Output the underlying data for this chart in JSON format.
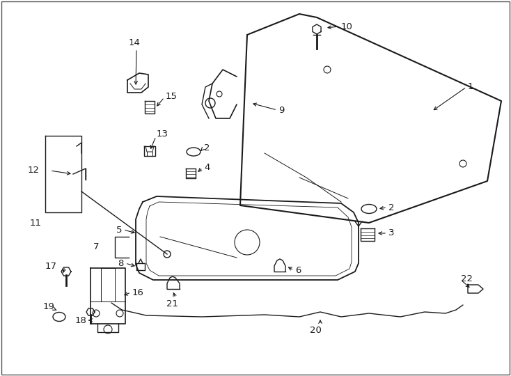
{
  "background_color": "#ffffff",
  "line_color": "#1a1a1a",
  "label_fontsize": 9.5,
  "figsize": [
    7.34,
    5.4
  ],
  "dpi": 100,
  "border_color": "#555555"
}
